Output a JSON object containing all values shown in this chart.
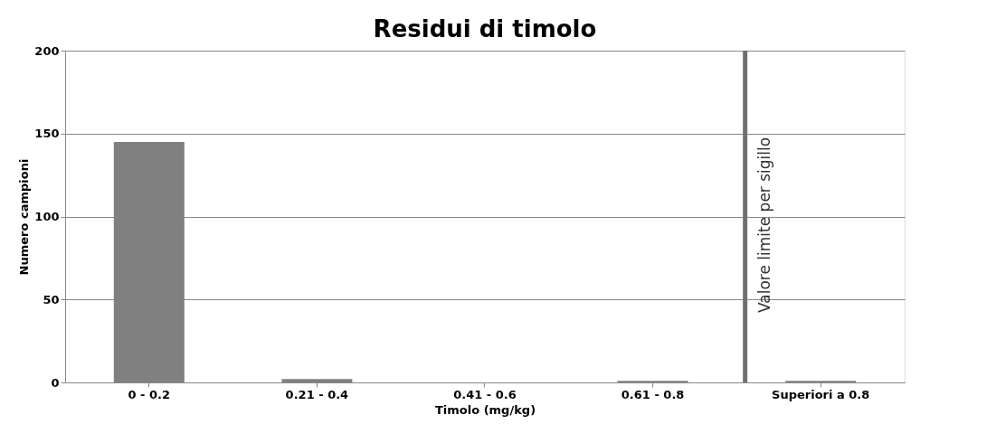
{
  "chart_data": {
    "type": "bar",
    "title": "Residui di timolo",
    "xlabel": "Timolo (mg/kg)",
    "ylabel": "Numero campioni",
    "categories": [
      "0 - 0.2",
      "0.21 - 0.4",
      "0.41 - 0.6",
      "0.61 - 0.8",
      "Superiori a 0.8"
    ],
    "values": [
      145,
      2,
      0,
      1,
      1
    ],
    "color": "#808080",
    "ylim": [
      0,
      200
    ],
    "yticks": [
      0,
      50,
      100,
      150,
      200
    ],
    "grid": "y",
    "ref_lines": [
      {
        "axis": "x",
        "value": "Superiori a 0.8",
        "label": "Valore limite per sigillo",
        "color": "#707070"
      }
    ]
  }
}
